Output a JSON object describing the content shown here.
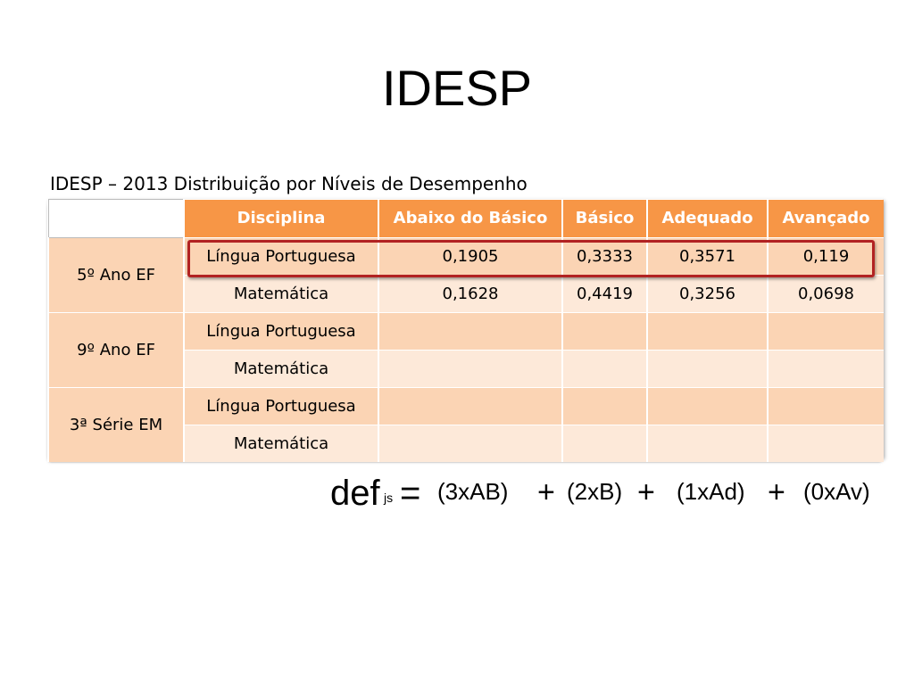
{
  "slide": {
    "title": "IDESP",
    "subtitle": "IDESP – 2013 Distribuição por Níveis de Desempenho"
  },
  "table": {
    "headers": [
      "",
      "Disciplina",
      "Abaixo do Básico",
      "Básico",
      "Adequado",
      "Avançado"
    ],
    "groups": [
      {
        "label": "5º Ano EF",
        "rows": [
          {
            "disciplina": "Língua Portuguesa",
            "abaixo": "0,1905",
            "basico": "0,3333",
            "adequado": "0,3571",
            "avancado": "0,119"
          },
          {
            "disciplina": "Matemática",
            "abaixo": "0,1628",
            "basico": "0,4419",
            "adequado": "0,3256",
            "avancado": "0,0698"
          }
        ]
      },
      {
        "label": "9º Ano EF",
        "rows": [
          {
            "disciplina": "Língua Portuguesa",
            "abaixo": "",
            "basico": "",
            "adequado": "",
            "avancado": ""
          },
          {
            "disciplina": "Matemática",
            "abaixo": "",
            "basico": "",
            "adequado": "",
            "avancado": ""
          }
        ]
      },
      {
        "label": "3ª Série EM",
        "rows": [
          {
            "disciplina": "Língua Portuguesa",
            "abaixo": "",
            "basico": "",
            "adequado": "",
            "avancado": ""
          },
          {
            "disciplina": "Matemática",
            "abaixo": "",
            "basico": "",
            "adequado": "",
            "avancado": ""
          }
        ]
      }
    ]
  },
  "formula": {
    "lhs": "def",
    "subscript": "js",
    "equals": "=",
    "term1": "(3xAB)",
    "plus1": "+",
    "term2": "(2xB)",
    "plus2": "+",
    "term3": "(1xAd)",
    "plus3": "+",
    "term4": "(0xAv)"
  },
  "colors": {
    "header": "#f79646",
    "row_dark": "#fbd4b4",
    "row_light": "#fde9d9",
    "highlight_border": "#b22222"
  }
}
